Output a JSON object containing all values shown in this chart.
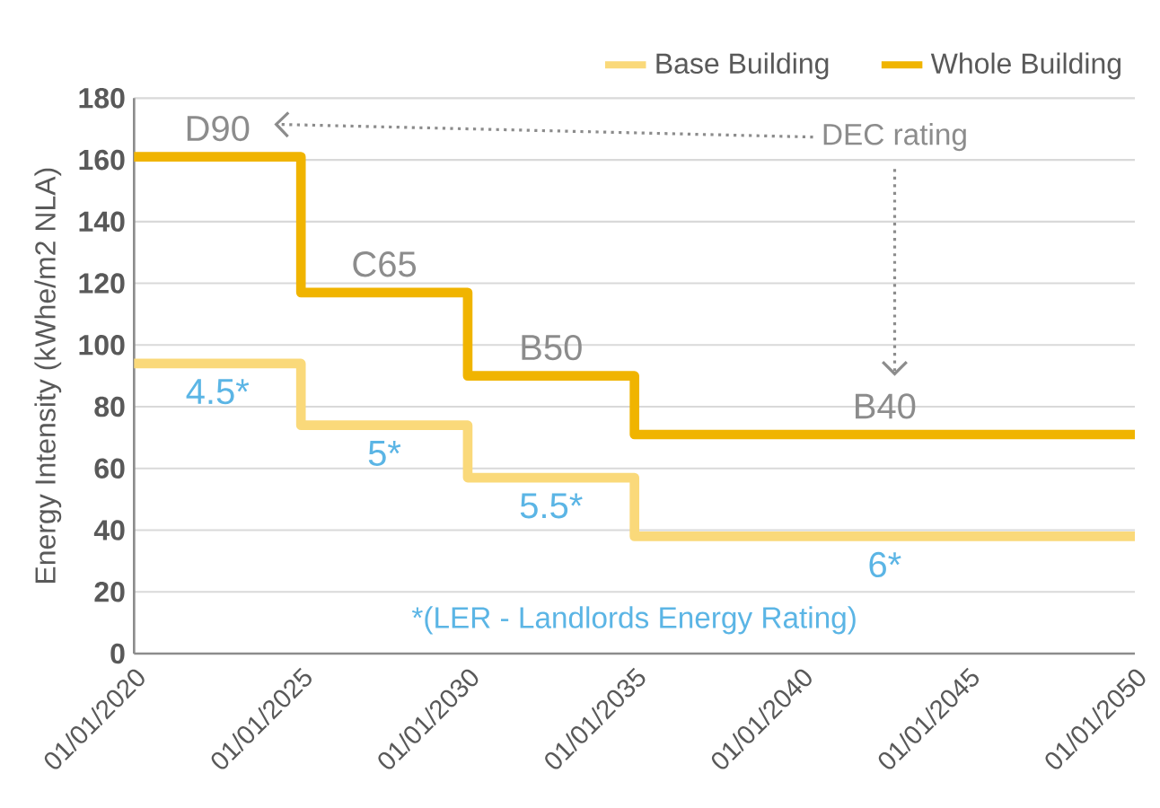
{
  "chart_data": {
    "type": "step",
    "ylabel": "Energy Intensity (kWhe/m2 NLA)",
    "x": [
      "2020-01-01",
      "2025-01-01",
      "2030-01-01",
      "2035-01-01",
      "2050-01-01"
    ],
    "series": [
      {
        "name": "Base Building",
        "color": "#fad97a",
        "values": [
          94,
          74,
          57,
          38,
          38
        ]
      },
      {
        "name": "Whole Building",
        "color": "#f0b400",
        "values": [
          161,
          117,
          90,
          71,
          71
        ]
      }
    ],
    "ylim": [
      0,
      180
    ],
    "yticks": [
      0,
      20,
      40,
      60,
      80,
      100,
      120,
      140,
      160,
      180
    ],
    "xlim": [
      "2020-01-01",
      "2050-01-01"
    ],
    "xticks": [
      {
        "value": "2020-01-01",
        "label": "01/01/2020"
      },
      {
        "value": "2025-01-01",
        "label": "01/01/2025"
      },
      {
        "value": "2030-01-01",
        "label": "01/01/2030"
      },
      {
        "value": "2035-01-01",
        "label": "01/01/2035"
      },
      {
        "value": "2040-01-01",
        "label": "01/01/2040"
      },
      {
        "value": "2045-01-01",
        "label": "01/01/2045"
      },
      {
        "value": "2050-01-01",
        "label": "01/01/2050"
      }
    ],
    "annotations": [
      "D90",
      "C65",
      "B50",
      "B40",
      "4.5*",
      "5*",
      "5.5*",
      "6*",
      "*(LER - Landlords Energy Rating)",
      "DEC rating"
    ],
    "grid": "y",
    "legend": "top right",
    "line_style": "solid",
    "marker": "none"
  }
}
